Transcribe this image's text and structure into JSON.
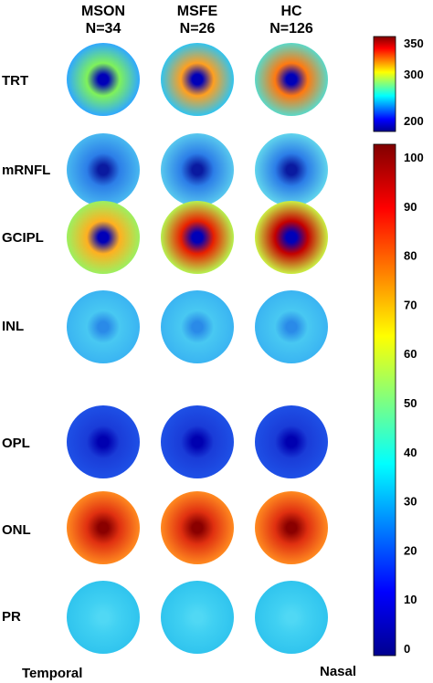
{
  "groups": [
    {
      "name": "MSON",
      "n": "N=34"
    },
    {
      "name": "MSFE",
      "n": "N=26"
    },
    {
      "name": "HC",
      "n": "N=126"
    }
  ],
  "layers": [
    {
      "label": "TRT",
      "maps": [
        {
          "center": "#0000b8",
          "ring": "#7ff25a",
          "edge": "#2fa8ff"
        },
        {
          "center": "#0000b8",
          "ring": "#ffa020",
          "edge": "#30c4f0"
        },
        {
          "center": "#0000b8",
          "ring": "#ff7a10",
          "edge": "#5ad8c8"
        }
      ]
    },
    {
      "label": "mRNFL",
      "maps": [
        {
          "center": "#0a1aa0",
          "ring": "#2c7ee8",
          "edge": "#48b8f0"
        },
        {
          "center": "#0a1aa0",
          "ring": "#2c7ee8",
          "edge": "#58c8ee"
        },
        {
          "center": "#0a1aa0",
          "ring": "#2c7ee8",
          "edge": "#60d4ec"
        }
      ]
    },
    {
      "label": "GCIPL",
      "maps": [
        {
          "center": "#0000b8",
          "ring": "#ffb020",
          "edge": "#9cf060"
        },
        {
          "center": "#0000b8",
          "ring": "#e82000",
          "edge": "#b6f250"
        },
        {
          "center": "#0000b8",
          "ring": "#c40000",
          "edge": "#caf044"
        }
      ]
    },
    {
      "label": "INL",
      "maps": [
        {
          "center": "#2a8ae8",
          "ring": "#48c8f2",
          "edge": "#3ab4f2"
        },
        {
          "center": "#2a8ae8",
          "ring": "#48c8f2",
          "edge": "#3ab4f2"
        },
        {
          "center": "#2a8ae8",
          "ring": "#48c8f2",
          "edge": "#3ab4f2"
        }
      ]
    },
    {
      "label": "OPL",
      "maps": [
        {
          "center": "#0000b0",
          "ring": "#1a3cd8",
          "edge": "#1e50e6"
        },
        {
          "center": "#0000b0",
          "ring": "#1a3cd8",
          "edge": "#1e50e6"
        },
        {
          "center": "#0000b0",
          "ring": "#1a3cd8",
          "edge": "#1e50e6"
        }
      ]
    },
    {
      "label": "ONL",
      "maps": [
        {
          "center": "#8a0000",
          "ring": "#e03010",
          "edge": "#ff8a20"
        },
        {
          "center": "#8a0000",
          "ring": "#e03010",
          "edge": "#ff8a20"
        },
        {
          "center": "#8a0000",
          "ring": "#e03010",
          "edge": "#ff8a20"
        }
      ]
    },
    {
      "label": "PR",
      "maps": [
        {
          "center": "#50d8f4",
          "ring": "#40d0f2",
          "edge": "#30c4ee"
        },
        {
          "center": "#50d8f4",
          "ring": "#40d0f2",
          "edge": "#30c4ee"
        },
        {
          "center": "#50d8f4",
          "ring": "#40d0f2",
          "edge": "#30c4ee"
        }
      ]
    }
  ],
  "colorbar_top": {
    "ticks": [
      "350",
      "300",
      "200"
    ]
  },
  "colorbar_bottom": {
    "ticks": [
      "100",
      "90",
      "80",
      "70",
      "60",
      "50",
      "40",
      "30",
      "20",
      "10",
      "0"
    ]
  },
  "footer": {
    "left": "Temporal",
    "right": "Nasal"
  }
}
